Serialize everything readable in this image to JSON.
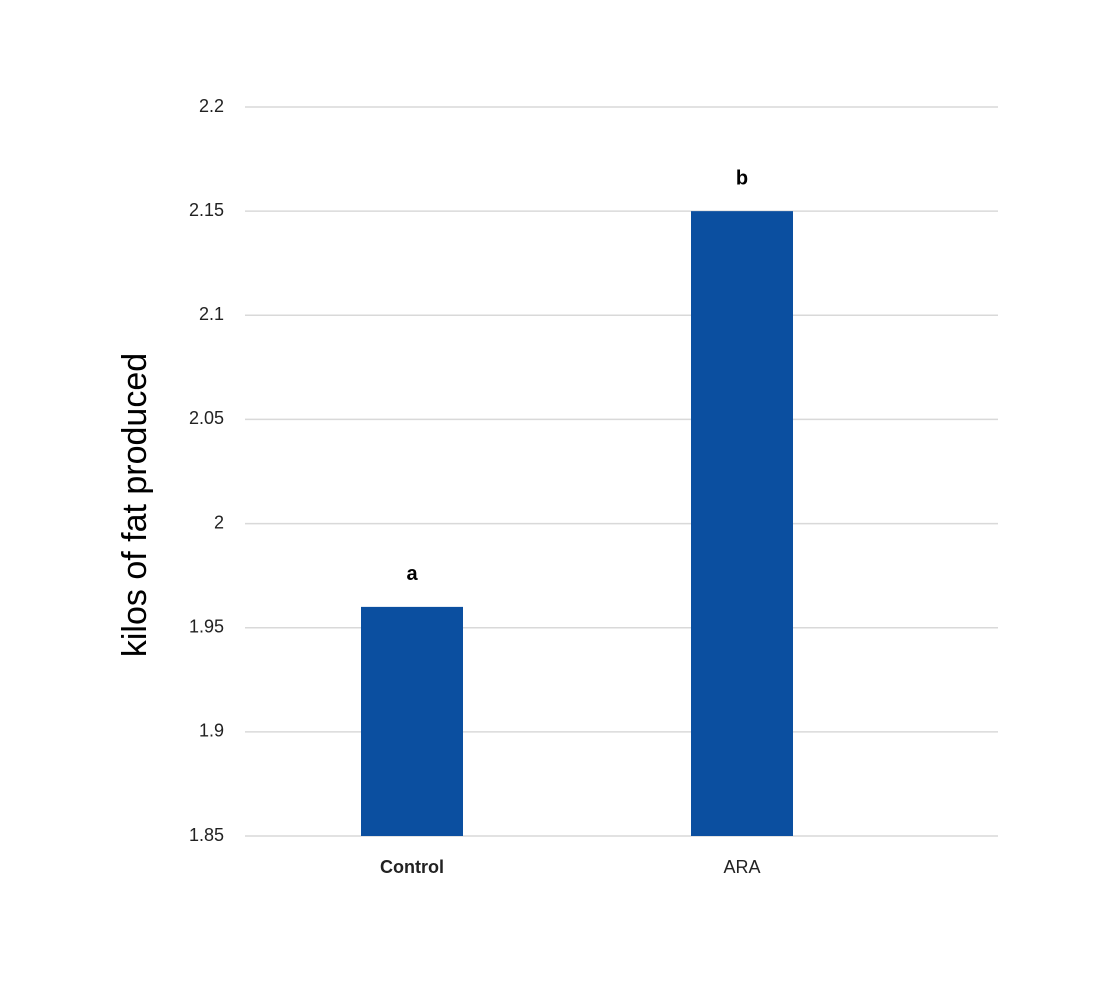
{
  "chart_data": {
    "type": "bar",
    "y_label": "kilos of fat produced",
    "categories": [
      "Control",
      "ARA"
    ],
    "values": [
      1.96,
      2.15
    ],
    "annotations": [
      "a",
      "b"
    ],
    "color": "#0b4fa0",
    "ylim": [
      1.85,
      2.2
    ],
    "yticks": [
      1.85,
      1.9,
      1.95,
      2,
      2.05,
      2.1,
      2.15,
      2.2
    ],
    "grid": true
  }
}
